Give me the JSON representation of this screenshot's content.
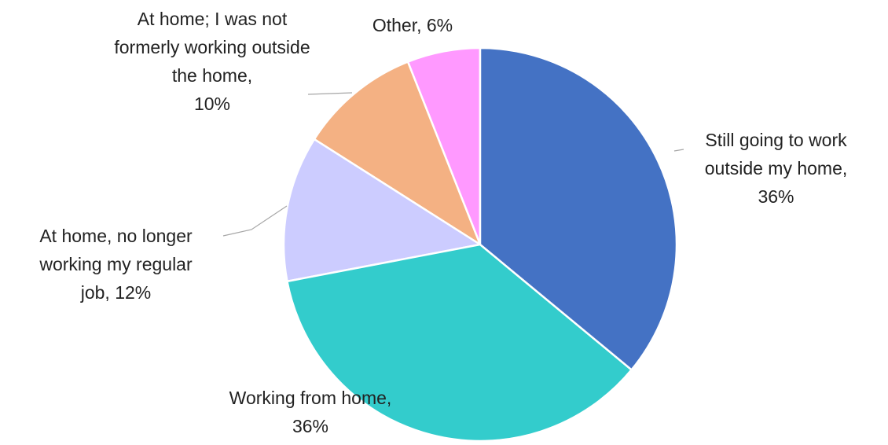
{
  "chart_data": {
    "type": "pie",
    "categories": [
      "Still going to work outside my home,",
      "Working from home,",
      "At home, no longer working my regular job,",
      "At home; I was not formerly working outside the home,",
      "Other,"
    ],
    "values": [
      36,
      36,
      12,
      10,
      6
    ],
    "value_labels": [
      "36%",
      "36%",
      "12%",
      "10%",
      "6%"
    ],
    "colors": [
      "#4472c4",
      "#33cccc",
      "#ccccff",
      "#f4b183",
      "#ff99ff"
    ]
  }
}
